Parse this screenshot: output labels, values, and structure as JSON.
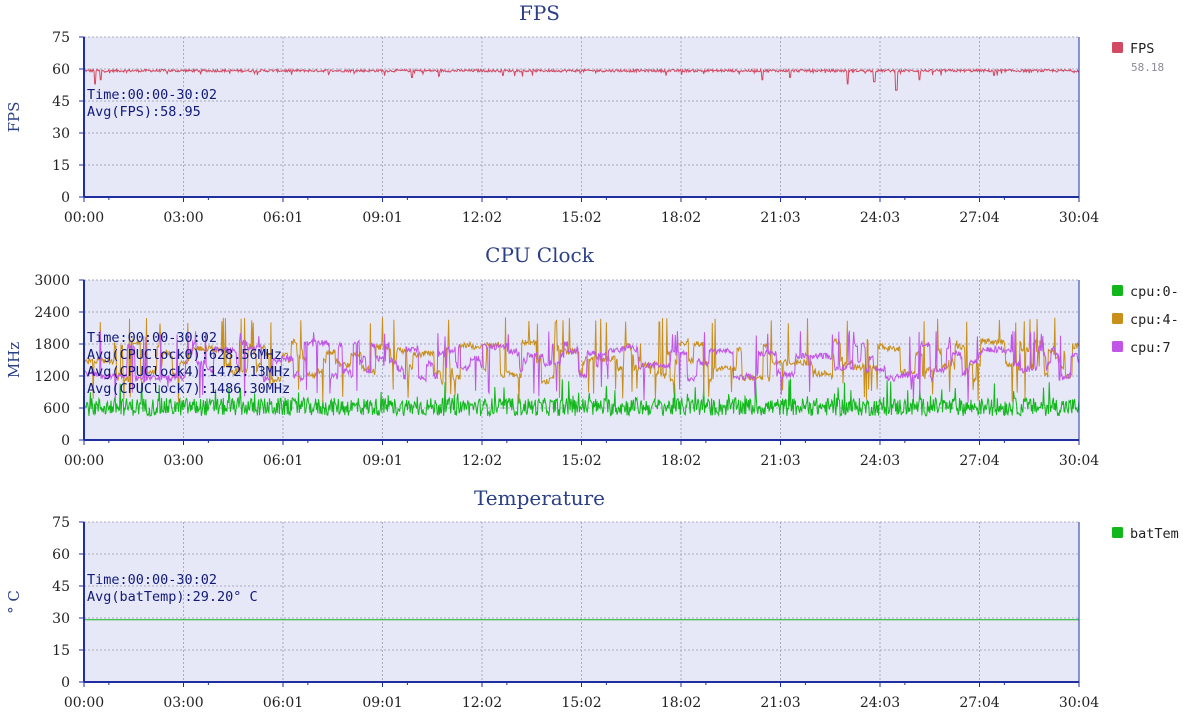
{
  "colors": {
    "plot_bg": "#e6e7f7",
    "axis": "#1f2fa0",
    "grid": "#a9abbf",
    "title": "#2b3f86",
    "annotation": "#111a7a",
    "fps": "#d24a62",
    "cpu0": "#12b81b",
    "cpu4": "#c8901a",
    "cpu7": "#c055e6",
    "batTemp": "#12b81b"
  },
  "x_tick_labels": [
    "00:00",
    "03:00",
    "06:01",
    "09:01",
    "12:02",
    "15:02",
    "18:02",
    "21:03",
    "24:03",
    "27:04",
    "30:04"
  ],
  "chart_data": [
    {
      "id": "fps",
      "type": "line",
      "title": "FPS",
      "ylabel": "FPS",
      "ylim": [
        0,
        75
      ],
      "yticks": [
        0,
        15,
        30,
        45,
        60,
        75
      ],
      "xlim_seconds": [
        0,
        1804
      ],
      "grid": true,
      "legend_position": "right",
      "annotations": [
        "Time:00:00-30:02",
        "Avg(FPS):58.95"
      ],
      "series": [
        {
          "name": "FPS",
          "color": "#d24a62",
          "legend_value": "58.18",
          "base": 59.2,
          "noise": 0.6,
          "dips": [
            [
              20,
              53
            ],
            [
              30,
              55
            ],
            [
              595,
              56
            ],
            [
              760,
              57
            ],
            [
              1230,
              55
            ],
            [
              1280,
              56
            ],
            [
              1385,
              53
            ],
            [
              1433,
              54
            ],
            [
              1473,
              50
            ],
            [
              1515,
              55
            ],
            [
              1650,
              57
            ]
          ]
        }
      ]
    },
    {
      "id": "cpu",
      "type": "line",
      "title": "CPU Clock",
      "ylabel": "MHz",
      "ylim": [
        0,
        3000
      ],
      "yticks": [
        0,
        600,
        1200,
        1800,
        2400,
        3000
      ],
      "xlim_seconds": [
        0,
        1804
      ],
      "grid": true,
      "legend_position": "right",
      "annotations": [
        "Time:00:00-30:02",
        "Avg(CPUClock0):628.56MHz",
        "Avg(CPUClock4):1472.13MHz",
        "Avg(CPUClock7):1486.30MHz"
      ],
      "series": [
        {
          "name": "cpu:0-",
          "color": "#12b81b",
          "base": 620,
          "noise": 170,
          "spike_max": 1150
        },
        {
          "name": "cpu:4-",
          "color": "#c8901a",
          "base": 1480,
          "noise": 300,
          "spike_max": 2300
        },
        {
          "name": "cpu:7",
          "color": "#c055e6",
          "base": 1490,
          "noise": 260,
          "spike_max": 2050
        }
      ]
    },
    {
      "id": "temp",
      "type": "line",
      "title": "Temperature",
      "ylabel": "° C",
      "ylim": [
        0,
        75
      ],
      "yticks": [
        0,
        15,
        30,
        45,
        60,
        75
      ],
      "xlim_seconds": [
        0,
        1804
      ],
      "grid": true,
      "legend_position": "right",
      "annotations": [
        "Time:00:00-30:02",
        "Avg(batTemp):29.20° C"
      ],
      "series": [
        {
          "name": "batTem",
          "color": "#12b81b",
          "values_constant": 29.2
        }
      ]
    }
  ]
}
